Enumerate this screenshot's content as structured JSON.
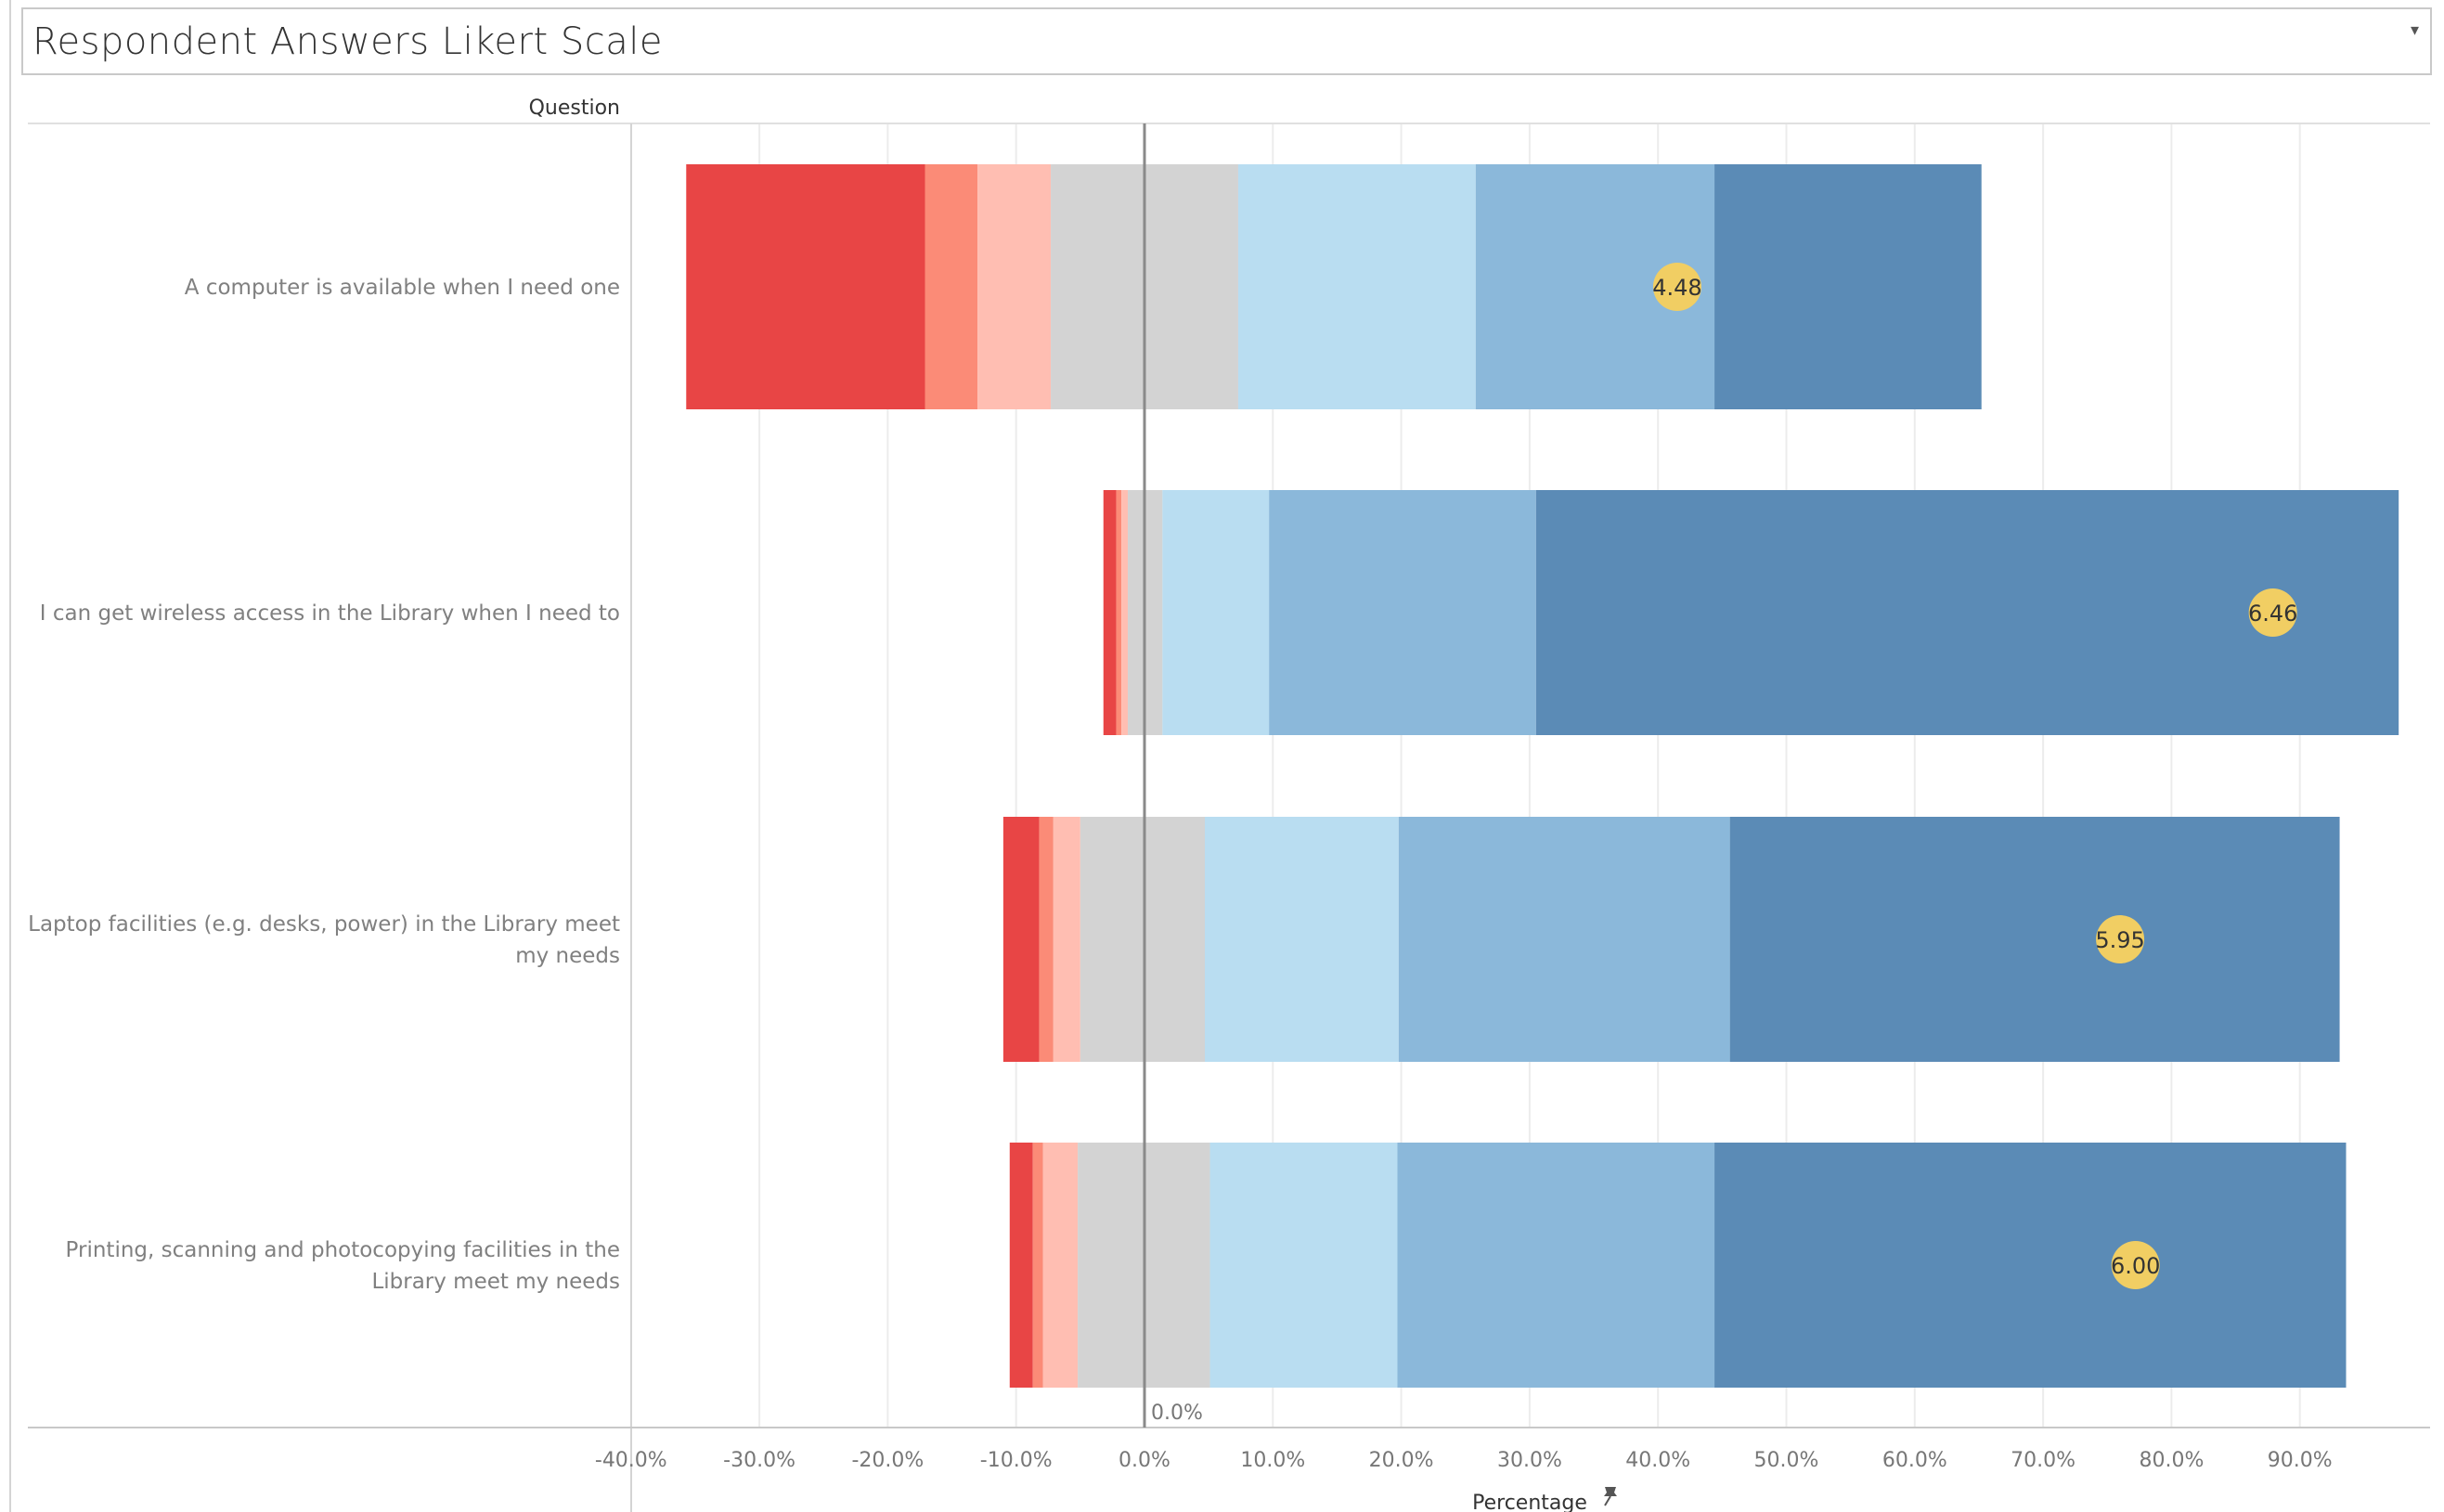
{
  "title": "Respondent Answers Likert Scale",
  "column_header": "Question",
  "colors": {
    "neg3": "#e84545",
    "neg2": "#fb8b77",
    "neg1": "#ffbeb2",
    "neutral": "#d3d3d3",
    "pos1": "#b9ddf1",
    "pos2": "#8bb8da",
    "pos3": "#5b8bb6",
    "mean": "#f1ce63",
    "grid": "#ececec",
    "zero_line": "#8a8a8a"
  },
  "chart_data": {
    "type": "bar",
    "orientation": "horizontal",
    "stacking": "diverging",
    "title": "Respondent Answers Likert Scale",
    "xlabel": "Percentage",
    "ylabel": "Question",
    "xlim": [
      -40,
      100
    ],
    "x_ticks": [
      -40,
      -30,
      -20,
      -10,
      0,
      10,
      20,
      30,
      40,
      50,
      60,
      70,
      80,
      90
    ],
    "x_tick_labels": [
      "-40.0%",
      "-30.0%",
      "-20.0%",
      "-10.0%",
      "0.0%",
      "10.0%",
      "20.0%",
      "30.0%",
      "40.0%",
      "50.0%",
      "60.0%",
      "70.0%",
      "80.0%",
      "90.0%"
    ],
    "zero_label": "0.0%",
    "grid": true,
    "categories": [
      "A computer is available when I need one",
      "I can get wireless access in the Library when I need to",
      "Laptop facilities (e.g. desks, power) in the Library meet my needs",
      "Printing, scanning and photocopying facilities in the Library meet my needs"
    ],
    "category_lines": [
      [
        "A computer is available when I need one"
      ],
      [
        "I can get wireless access in the Library when I need to"
      ],
      [
        "Laptop facilities (e.g. desks, power) in the Library meet",
        "my needs"
      ],
      [
        "Printing, scanning and photocopying facilities in the",
        "Library meet my needs"
      ]
    ],
    "segment_order": [
      "neg3",
      "neg2",
      "neg1",
      "neutral",
      "pos1",
      "pos2",
      "pos3"
    ],
    "segments": [
      [
        18.6,
        4.1,
        5.7,
        14.6,
        18.5,
        18.6,
        20.8
      ],
      [
        1.0,
        0.4,
        0.5,
        2.7,
        8.3,
        20.8,
        67.2
      ],
      [
        2.8,
        1.1,
        2.1,
        9.7,
        15.1,
        25.8,
        47.5
      ],
      [
        1.8,
        0.8,
        2.7,
        10.3,
        14.6,
        24.7,
        49.2
      ]
    ],
    "negative_totals": [
      35.7,
      3.2,
      11.0,
      10.5
    ],
    "mean_scores": [
      4.48,
      6.46,
      5.95,
      6.0
    ],
    "mean_labels": [
      "4.48",
      "6.46",
      "5.95",
      "6.00"
    ],
    "mean_positions": [
      41.5,
      87.9,
      76.0,
      77.2
    ]
  }
}
